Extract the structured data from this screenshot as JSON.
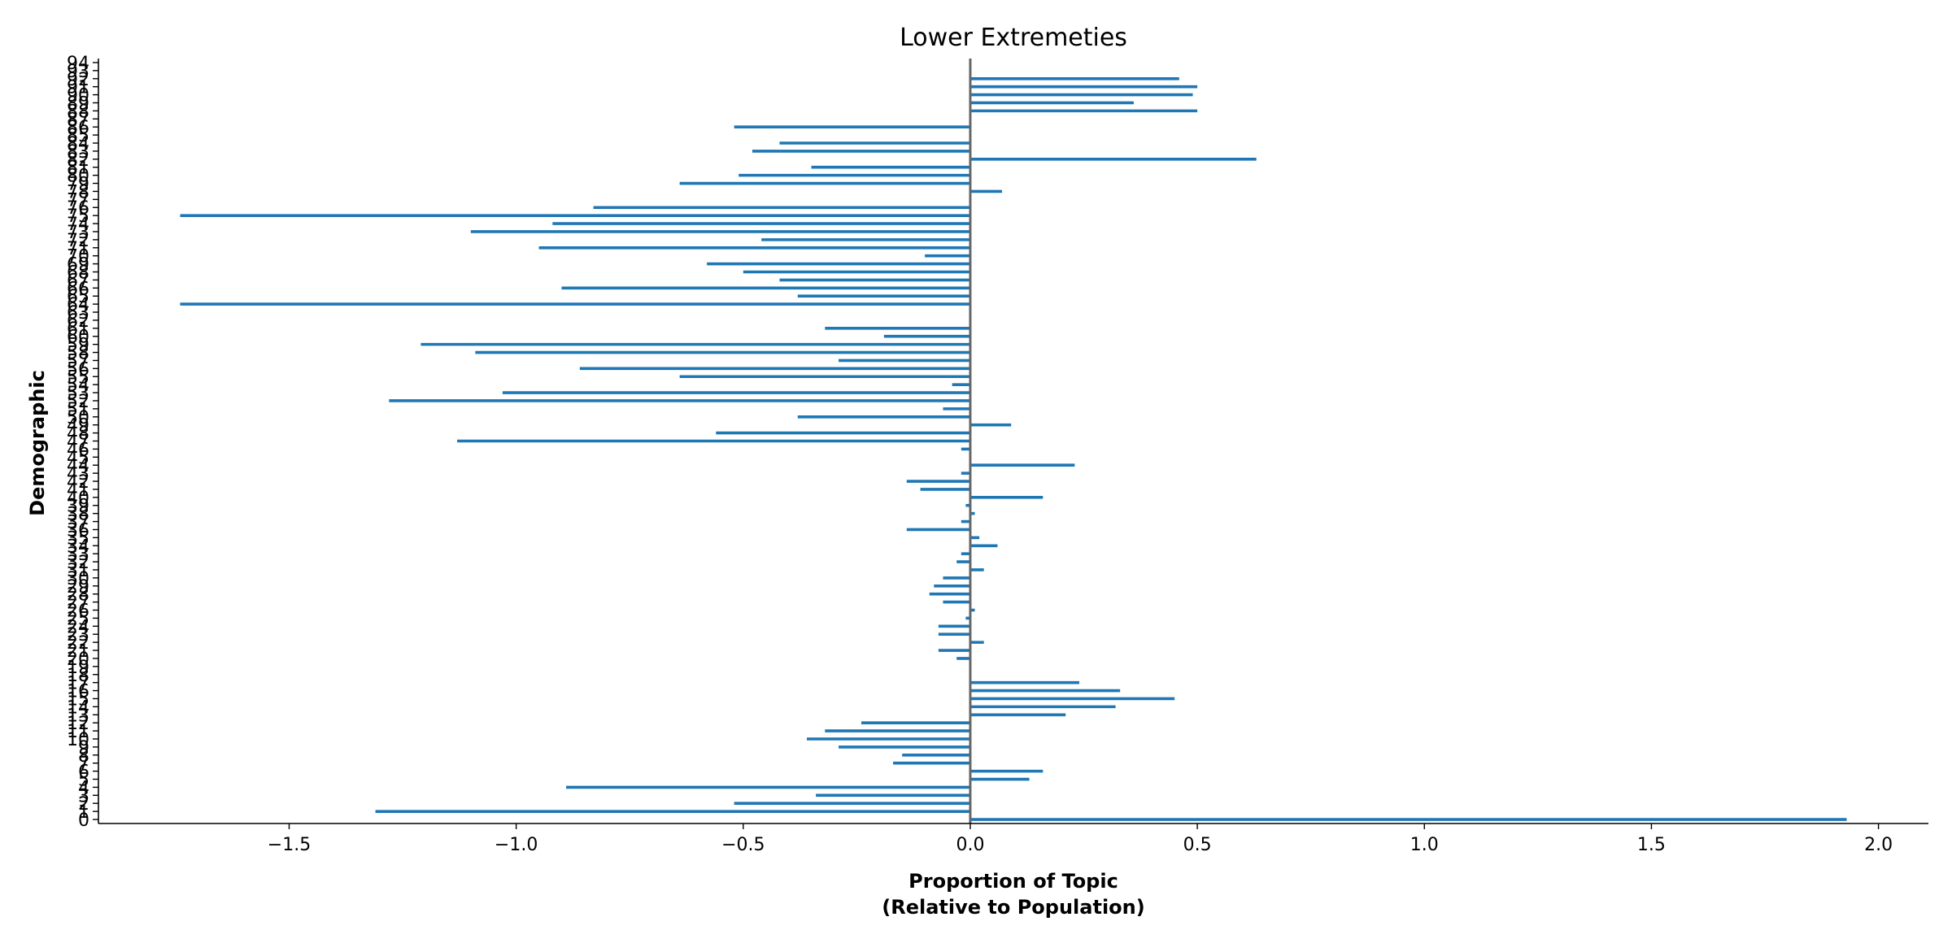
{
  "chart_data": {
    "type": "bar",
    "orientation": "horizontal",
    "title": "Lower Extremeties",
    "xlabel": "Proportion of Topic",
    "xlabel_line2": "(Relative to Population)",
    "ylabel": "Demographic",
    "xlim": [
      -1.92,
      2.11
    ],
    "ylim": [
      -0.5,
      94.5
    ],
    "x_ticks": [
      -1.5,
      -1.0,
      -0.5,
      0.0,
      0.5,
      1.0,
      1.5,
      2.0
    ],
    "x_tick_labels": [
      "−1.5",
      "−1.0",
      "−0.5",
      "0.0",
      "0.5",
      "1.0",
      "1.5",
      "2.0"
    ],
    "categories": [
      "0",
      "1",
      "2",
      "3",
      "4",
      "5",
      "6",
      "7",
      "8",
      "9",
      "10",
      "11",
      "12",
      "13",
      "14",
      "15",
      "16",
      "17",
      "18",
      "19",
      "20",
      "21",
      "22",
      "23",
      "24",
      "25",
      "26",
      "27",
      "28",
      "29",
      "30",
      "31",
      "32",
      "33",
      "34",
      "35",
      "36",
      "37",
      "38",
      "39",
      "40",
      "41",
      "42",
      "43",
      "44",
      "45",
      "46",
      "47",
      "48",
      "49",
      "50",
      "51",
      "52",
      "53",
      "54",
      "55",
      "56",
      "57",
      "58",
      "59",
      "60",
      "61",
      "62",
      "63",
      "64",
      "65",
      "66",
      "67",
      "68",
      "69",
      "70",
      "71",
      "72",
      "73",
      "74",
      "75",
      "76",
      "77",
      "78",
      "79",
      "80",
      "81",
      "82",
      "83",
      "84",
      "85",
      "86",
      "87",
      "88",
      "89",
      "90",
      "91",
      "92",
      "93",
      "94"
    ],
    "values": [
      1.93,
      -1.31,
      -0.52,
      -0.34,
      -0.89,
      0.13,
      0.16,
      -0.17,
      -0.15,
      -0.29,
      -0.36,
      -0.32,
      -0.24,
      0.21,
      0.32,
      0.45,
      0.33,
      0.24,
      0.0,
      0.0,
      -0.03,
      -0.07,
      0.03,
      -0.07,
      -0.07,
      -0.01,
      0.01,
      -0.06,
      -0.09,
      -0.08,
      -0.06,
      0.03,
      -0.03,
      -0.02,
      0.06,
      0.02,
      -0.14,
      -0.02,
      0.01,
      -0.01,
      0.16,
      -0.11,
      -0.14,
      -0.02,
      0.23,
      0.0,
      -0.02,
      -1.13,
      -0.56,
      0.09,
      -0.38,
      -0.06,
      -1.28,
      -1.03,
      -0.04,
      -0.64,
      -0.86,
      -0.29,
      -1.09,
      -1.21,
      -0.19,
      -0.32,
      0.0,
      0.0,
      -1.74,
      -0.38,
      -0.9,
      -0.42,
      -0.5,
      -0.58,
      -0.1,
      -0.95,
      -0.46,
      -1.1,
      -0.92,
      -1.74,
      -0.83,
      0.0,
      0.07,
      -0.64,
      -0.51,
      -0.35,
      0.63,
      -0.48,
      -0.42,
      0.0,
      -0.52,
      0.0,
      0.5,
      0.36,
      0.49,
      0.5,
      0.46,
      0.0,
      0.0
    ],
    "bar_color": "#1f77b4",
    "zero_line_color": "#666666",
    "grid": false,
    "legend": "none"
  }
}
